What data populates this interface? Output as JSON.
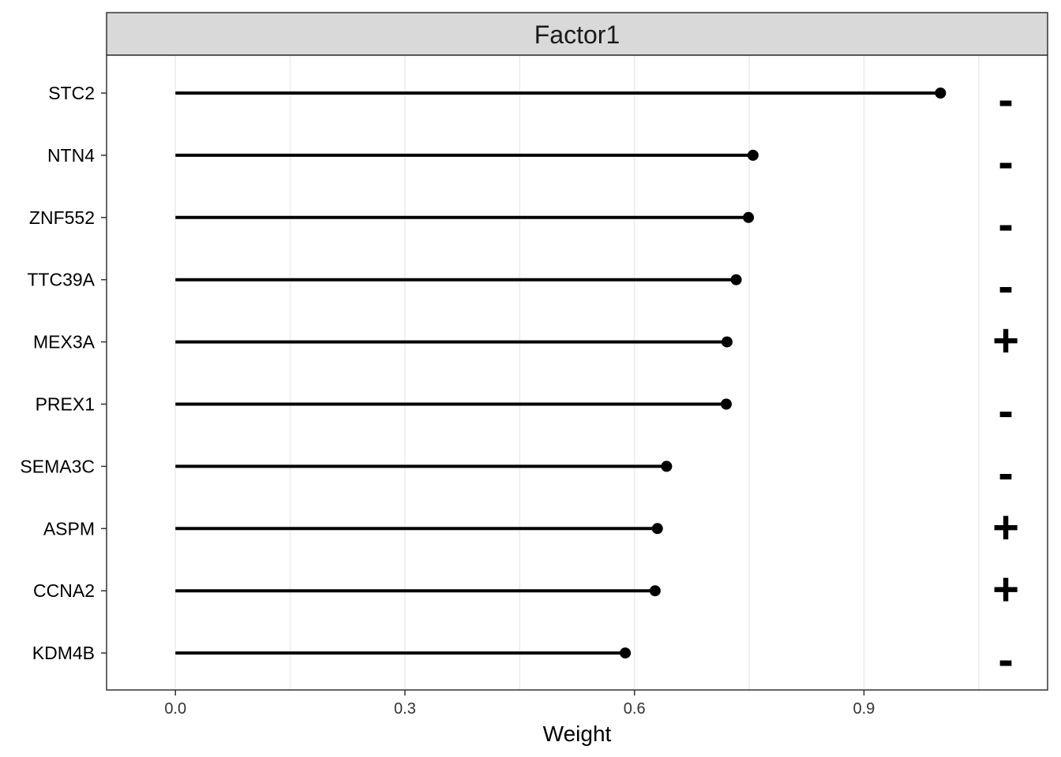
{
  "chart_data": {
    "type": "lollipop",
    "facet": "Factor1",
    "xlabel": "Weight",
    "ylabel": "",
    "xlim": [
      -0.09,
      1.14
    ],
    "x_ticks": [
      0.0,
      0.3,
      0.6,
      0.9
    ],
    "x_tick_labels": [
      "0.0",
      "0.3",
      "0.6",
      "0.9"
    ],
    "grid": true,
    "colors": {
      "mark": "#000000",
      "grid": "#ebebeb",
      "strip_fill": "#d9d9d9",
      "border": "#333333"
    },
    "points": [
      {
        "gene": "STC2",
        "weight": 1.0,
        "sign": "-"
      },
      {
        "gene": "NTN4",
        "weight": 0.755,
        "sign": "-"
      },
      {
        "gene": "ZNF552",
        "weight": 0.749,
        "sign": "-"
      },
      {
        "gene": "TTC39A",
        "weight": 0.733,
        "sign": "-"
      },
      {
        "gene": "MEX3A",
        "weight": 0.721,
        "sign": "+"
      },
      {
        "gene": "PREX1",
        "weight": 0.72,
        "sign": "-"
      },
      {
        "gene": "SEMA3C",
        "weight": 0.642,
        "sign": "-"
      },
      {
        "gene": "ASPM",
        "weight": 0.63,
        "sign": "+"
      },
      {
        "gene": "CCNA2",
        "weight": 0.627,
        "sign": "+"
      },
      {
        "gene": "KDM4B",
        "weight": 0.588,
        "sign": "-"
      }
    ]
  }
}
